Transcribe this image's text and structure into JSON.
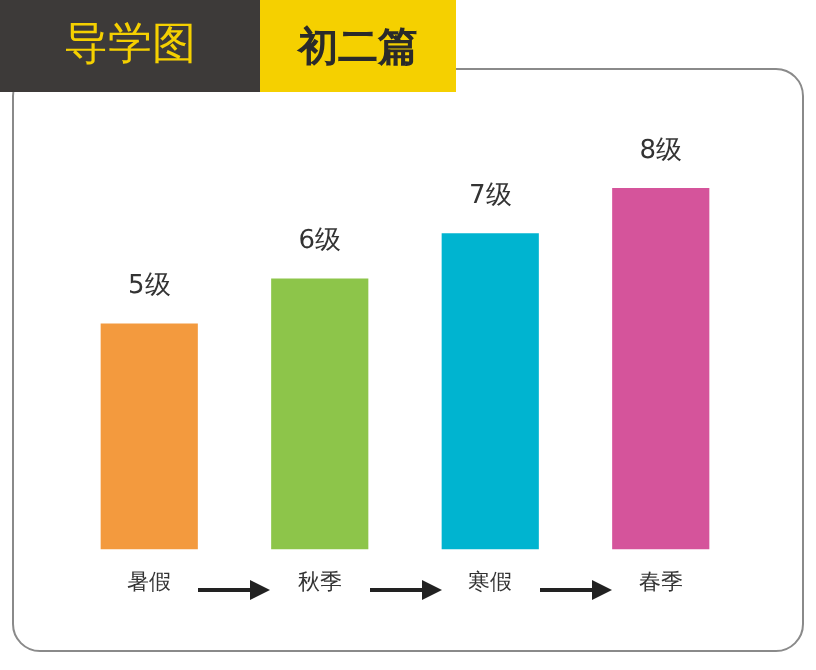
{
  "chart_data": {
    "type": "bar",
    "title": "导学图",
    "subtitle": "初二篇",
    "categories": [
      "暑假",
      "秋季",
      "寒假",
      "春季"
    ],
    "values": [
      5,
      6,
      7,
      8
    ],
    "value_labels": [
      "5级",
      "6级",
      "7级",
      "8级"
    ],
    "colors": [
      "#f39a3e",
      "#8dc54a",
      "#00b4d0",
      "#d5549b"
    ],
    "grid": false,
    "legend": false
  }
}
